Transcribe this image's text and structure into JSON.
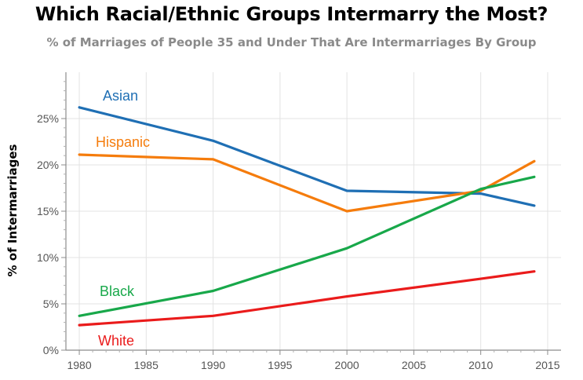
{
  "title": "Which Racial/Ethnic Groups Intermarry the Most?",
  "subtitle": "% of Marriages of People 35 and Under That Are Intermarriages By Group",
  "chart_data": {
    "type": "line",
    "title": "Which Racial/Ethnic Groups Intermarry the Most?",
    "subtitle": "% of Marriages of People 35 and Under That Are Intermarriages By Group",
    "xlabel": "",
    "ylabel": "% of Intermarriages",
    "xlim": [
      1979,
      2016
    ],
    "ylim": [
      0,
      30
    ],
    "xticks": [
      1980,
      1985,
      1990,
      1995,
      2000,
      2005,
      2010,
      2015
    ],
    "yticks": [
      0,
      5,
      10,
      15,
      20,
      25
    ],
    "ytick_labels": [
      "0%",
      "5%",
      "10%",
      "15%",
      "20%",
      "25%"
    ],
    "grid": true,
    "series": [
      {
        "name": "Asian",
        "color": "#1f6fb4",
        "x": [
          1980,
          1990,
          2000,
          2010,
          2014
        ],
        "values": [
          26.2,
          22.6,
          17.2,
          16.9,
          15.6
        ]
      },
      {
        "name": "Hispanic",
        "color": "#f57c0c",
        "x": [
          1980,
          1990,
          2000,
          2010,
          2014
        ],
        "values": [
          21.1,
          20.6,
          15.0,
          17.2,
          20.4
        ]
      },
      {
        "name": "Black",
        "color": "#18a84a",
        "x": [
          1980,
          1990,
          2000,
          2010,
          2014
        ],
        "values": [
          3.7,
          6.4,
          11.0,
          17.4,
          18.7
        ]
      },
      {
        "name": "White",
        "color": "#ea1b1b",
        "x": [
          1980,
          1990,
          2000,
          2010,
          2014
        ],
        "values": [
          2.7,
          3.7,
          5.8,
          7.7,
          8.5
        ]
      }
    ]
  }
}
